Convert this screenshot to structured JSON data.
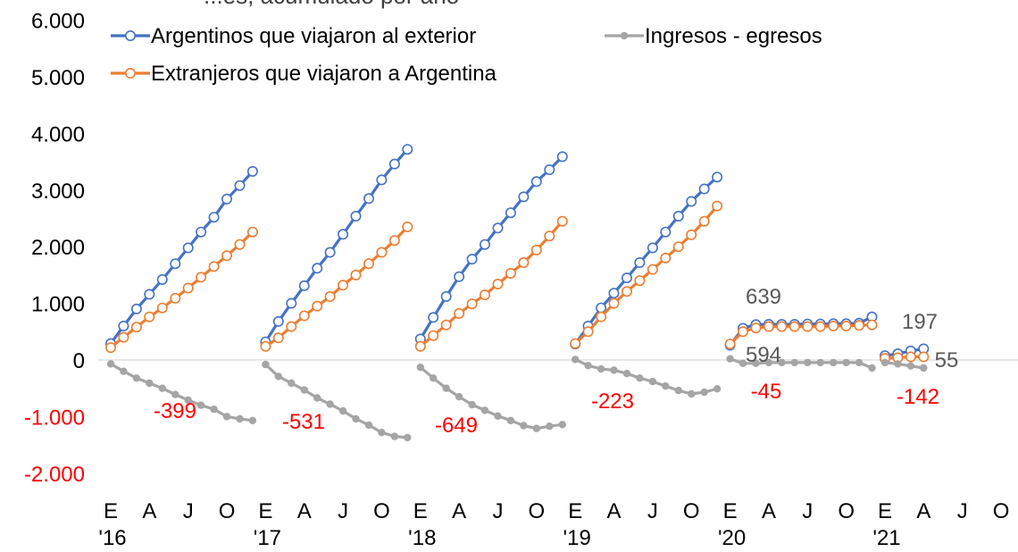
{
  "chart_data": {
    "type": "line",
    "title": "",
    "title_fragment": "...es, acumulado por año",
    "xlabel": "",
    "ylabel": "",
    "ylim": [
      -2000,
      6000
    ],
    "yticks": [
      "6.000",
      "5.000",
      "4.000",
      "3.000",
      "2.000",
      "1.000",
      "0",
      "-1.000",
      "-2.000"
    ],
    "xtick_months": [
      "E",
      "A",
      "J",
      "O",
      "E",
      "A",
      "J",
      "O",
      "E",
      "A",
      "J",
      "O",
      "E",
      "A",
      "J",
      "O",
      "E",
      "A",
      "J",
      "O",
      "E",
      "A",
      "J",
      "O"
    ],
    "xtick_years": [
      "'16",
      "'17",
      "'18",
      "'19",
      "'20",
      "'21"
    ],
    "years": [
      "'16",
      "'17",
      "'18",
      "'19",
      "'20",
      "'21"
    ],
    "legend_position": "top",
    "grid": false,
    "series": [
      {
        "name": "Argentinos que viajaron al exterior",
        "color": "#4472C4",
        "marker": "open-circle",
        "values": [
          [
            290,
            600,
            900,
            1160,
            1420,
            1700,
            1980,
            2260,
            2520,
            2840,
            3080,
            3330
          ],
          [
            320,
            680,
            1000,
            1310,
            1620,
            1900,
            2220,
            2540,
            2850,
            3180,
            3460,
            3720
          ],
          [
            370,
            750,
            1120,
            1470,
            1780,
            2040,
            2330,
            2600,
            2880,
            3150,
            3360,
            3590
          ],
          [
            280,
            600,
            920,
            1180,
            1450,
            1720,
            1980,
            2260,
            2540,
            2800,
            3020,
            3230
          ],
          [
            260,
            560,
            625,
            630,
            630,
            630,
            635,
            635,
            640,
            640,
            650,
            760
          ],
          [
            75,
            110,
            160,
            197
          ]
        ]
      },
      {
        "name": "Extranjeros que viajaron a Argentina",
        "color": "#ED7D31",
        "marker": "open-circle",
        "values": [
          [
            220,
            400,
            580,
            760,
            920,
            1090,
            1270,
            1460,
            1650,
            1840,
            2040,
            2260
          ],
          [
            240,
            390,
            590,
            780,
            950,
            1120,
            1320,
            1500,
            1700,
            1900,
            2110,
            2350
          ],
          [
            240,
            430,
            620,
            820,
            990,
            1150,
            1340,
            1530,
            1720,
            1940,
            2190,
            2450
          ],
          [
            290,
            500,
            760,
            1000,
            1210,
            1400,
            1600,
            1800,
            2000,
            2210,
            2450,
            2720
          ],
          [
            280,
            500,
            565,
            590,
            590,
            590,
            590,
            590,
            600,
            600,
            610,
            620
          ],
          [
            30,
            40,
            55,
            55
          ]
        ]
      },
      {
        "name": "Ingresos - egresos",
        "color": "#A5A5A5",
        "marker": "filled-circle",
        "values": [
          [
            -70,
            -200,
            -320,
            -410,
            -500,
            -610,
            -710,
            -800,
            -870,
            -1000,
            -1040,
            -1070
          ],
          [
            -80,
            -290,
            -410,
            -530,
            -670,
            -780,
            -900,
            -1040,
            -1150,
            -1280,
            -1350,
            -1370
          ],
          [
            -130,
            -320,
            -500,
            -650,
            -790,
            -890,
            -990,
            -1070,
            -1160,
            -1210,
            -1170,
            -1140
          ],
          [
            10,
            -100,
            -160,
            -180,
            -240,
            -320,
            -380,
            -460,
            -540,
            -600,
            -570,
            -510
          ],
          [
            20,
            -60,
            -60,
            -45,
            -45,
            -45,
            -45,
            -45,
            -45,
            -45,
            -45,
            -142
          ],
          [
            -45,
            -70,
            -105,
            -142
          ]
        ]
      }
    ],
    "data_labels": {
      "argentinos": {
        "'20": "639",
        "'21": "197"
      },
      "extranjeros": {
        "'20": "594",
        "'21": "55"
      },
      "saldo": {
        "'16": "-399",
        "'17": "-531",
        "'18": "-649",
        "'19": "-223",
        "'20": "-45",
        "'21": "-142"
      },
      "saldo_color": "#FF0000",
      "pos_color": "#595959"
    }
  }
}
